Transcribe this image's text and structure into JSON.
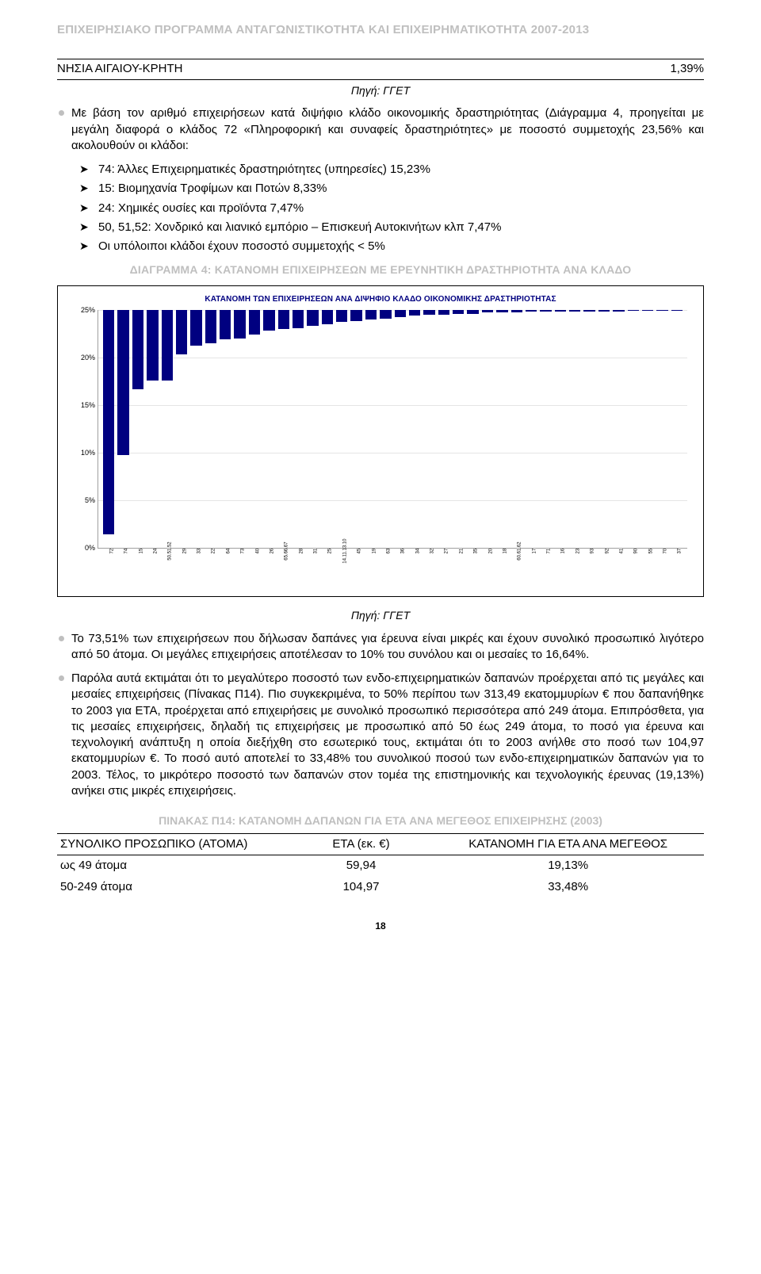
{
  "header": {
    "series_title": "ΕΠΙΧΕΙΡΗΣΙΑΚΟ ΠΡΟΓΡΑΜΜΑ ΑΝΤΑΓΩΝΙΣΤΙΚΟΤΗΤΑ ΚΑΙ ΕΠΙΧΕΙΡΗΜΑΤΙΚΟΤΗΤΑ 2007-2013"
  },
  "mini_table": {
    "row_label": "ΝΗΣΙΑ ΑΙΓΑΙΟΥ-ΚΡΗΤΗ",
    "row_value": "1,39%",
    "source_caption": "Πηγή: ΓΓΕΤ"
  },
  "intro": {
    "lead_para": "Με βάση τον αριθμό επιχειρήσεων κατά διψήφιο κλάδο οικονομικής δραστηριότητας (Διάγραμμα 4, προηγείται με μεγάλη διαφορά ο κλάδος 72 «Πληροφορική και συναφείς δραστηριότητες» με ποσοστό συμμετοχής 23,56% και ακολουθούν οι κλάδοι:",
    "bullets": [
      "74: Άλλες Επιχειρηματικές δραστηριότητες (υπηρεσίες) 15,23%",
      "15: Βιομηχανία Τροφίμων και Ποτών 8,33%",
      "24: Χημικές ουσίες και προϊόντα 7,47%",
      "50, 51,52: Χονδρικό και λιανικό εμπόριο – Επισκευή Αυτοκινήτων κλπ 7,47%",
      "Οι υπόλοιποι κλάδοι έχουν ποσοστό συμμετοχής < 5%"
    ]
  },
  "diagram4_heading": "ΔΙΑΓΡΑΜΜΑ 4: ΚΑΤΑΝΟΜΗ ΕΠΙΧΕΙΡΗΣΕΩΝ ΜΕ ΕΡΕΥΝΗΤΙΚΗ ΔΡΑΣΤΗΡΙΟΤΗΤΑ ΑΝΑ ΚΛΑΔΟ",
  "chart": {
    "type": "bar",
    "title": "ΚΑΤΑΝΟΜΗ ΤΩΝ ΕΠΙΧΕΙΡΗΣΕΩΝ ΑΝΑ ΔΙΨΗΦΙΟ ΚΛΑΔΟ ΟΙΚΟΝΟΜΙΚΗΣ ΔΡΑΣΤΗΡΙΟΤΗΤΑΣ",
    "y_ticks": [
      "0%",
      "5%",
      "10%",
      "15%",
      "20%",
      "25%"
    ],
    "y_max_pct": 25,
    "bar_color": "#000080",
    "grid_color": "#e5e5e5",
    "axis_color": "#a0a0a0",
    "background_color": "#ffffff",
    "bars": [
      {
        "label": "72",
        "value": 23.56
      },
      {
        "label": "74",
        "value": 15.23
      },
      {
        "label": "15",
        "value": 8.33
      },
      {
        "label": "24",
        "value": 7.47
      },
      {
        "label": "50.51.52",
        "value": 7.47
      },
      {
        "label": "29",
        "value": 4.7
      },
      {
        "label": "33",
        "value": 3.8
      },
      {
        "label": "22",
        "value": 3.5
      },
      {
        "label": "64",
        "value": 3.1
      },
      {
        "label": "73",
        "value": 3.0
      },
      {
        "label": "40",
        "value": 2.6
      },
      {
        "label": "26",
        "value": 2.2
      },
      {
        "label": "65.66.67",
        "value": 2.0
      },
      {
        "label": "28",
        "value": 1.9
      },
      {
        "label": "31",
        "value": 1.7
      },
      {
        "label": "25",
        "value": 1.5
      },
      {
        "label": "14.11.13.10",
        "value": 1.3
      },
      {
        "label": "45",
        "value": 1.2
      },
      {
        "label": "19",
        "value": 1.0
      },
      {
        "label": "63",
        "value": 0.9
      },
      {
        "label": "36",
        "value": 0.8
      },
      {
        "label": "34",
        "value": 0.6
      },
      {
        "label": "32",
        "value": 0.5
      },
      {
        "label": "27",
        "value": 0.5
      },
      {
        "label": "21",
        "value": 0.4
      },
      {
        "label": "35",
        "value": 0.4
      },
      {
        "label": "20",
        "value": 0.3
      },
      {
        "label": "18",
        "value": 0.3
      },
      {
        "label": "60.61.62",
        "value": 0.3
      },
      {
        "label": "17",
        "value": 0.2
      },
      {
        "label": "71",
        "value": 0.2
      },
      {
        "label": "16",
        "value": 0.2
      },
      {
        "label": "23",
        "value": 0.2
      },
      {
        "label": "93",
        "value": 0.15
      },
      {
        "label": "92",
        "value": 0.15
      },
      {
        "label": "41",
        "value": 0.15
      },
      {
        "label": "90",
        "value": 0.1
      },
      {
        "label": "55",
        "value": 0.1
      },
      {
        "label": "70",
        "value": 0.1
      },
      {
        "label": "37",
        "value": 0.1
      }
    ]
  },
  "chart_source": "Πηγή: ΓΓΕΤ",
  "post_chart": {
    "para1": "Το 73,51% των επιχειρήσεων που δήλωσαν δαπάνες για έρευνα είναι μικρές και έχουν συνολικό προσωπικό λιγότερο από 50 άτομα. Οι μεγάλες επιχειρήσεις αποτέλεσαν το 10% του συνόλου και οι μεσαίες το 16,64%.",
    "para2": "Παρόλα αυτά εκτιμάται ότι το μεγαλύτερο ποσοστό των ενδο-επιχειρηματικών δαπανών προέρχεται από τις μεγάλες και μεσαίες επιχειρήσεις (Πίνακας Π14). Πιο συγκεκριμένα, το 50% περίπου των 313,49 εκατομμυρίων € που δαπανήθηκε το 2003 για ΕΤΑ, προέρχεται από επιχειρήσεις με συνολικό προσωπικό περισσότερα από 249 άτομα. Επιπρόσθετα, για τις μεσαίες επιχειρήσεις, δηλαδή τις επιχειρήσεις με προσωπικό από 50 έως 249 άτομα, το ποσό για έρευνα και τεχνολογική ανάπτυξη η οποία διεξήχθη στο εσωτερικό τους, εκτιμάται ότι το 2003 ανήλθε στο ποσό των 104,97 εκατομμυρίων €. Το ποσό αυτό αποτελεί το 33,48% του συνολικού ποσού των ενδο-επιχειρηματικών δαπανών για το 2003. Τέλος, το μικρότερο ποσοστό των δαπανών στον τομέα της επιστημονικής και τεχνολογικής έρευνας (19,13%) ανήκει στις μικρές επιχειρήσεις."
  },
  "table14": {
    "heading": "ΠΙΝΑΚΑΣ Π14: ΚΑΤΑΝΟΜΗ ΔΑΠΑΝΩΝ ΓΙΑ ΕΤΑ ΑΝΑ ΜΕΓΕΘΟΣ ΕΠΙΧΕΙΡΗΣΗΣ (2003)",
    "columns": [
      "ΣΥΝΟΛΙΚΟ ΠΡΟΣΩΠΙΚΟ (ΑΤΟΜΑ)",
      "ΕΤΑ (εκ. €)",
      "ΚΑΤΑΝΟΜΗ ΓΙΑ ΕΤΑ ΑΝΑ ΜΕΓΕΘΟΣ"
    ],
    "rows": [
      [
        "ως 49 άτομα",
        "59,94",
        "19,13%"
      ],
      [
        "50-249 άτομα",
        "104,97",
        "33,48%"
      ]
    ]
  },
  "page_number": "18"
}
